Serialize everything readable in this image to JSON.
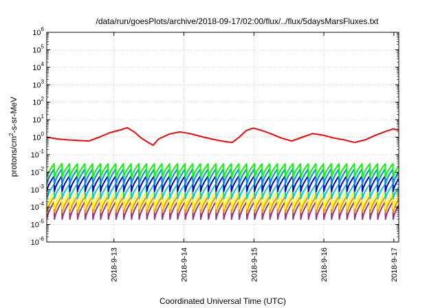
{
  "chart_data": {
    "type": "line",
    "title": "/data/run/goesPlots/archive/2018-09-17/02:00/flux/../flux/5daysMarsFluxes.txt",
    "xlabel": "Coordinated Universal Time (UTC)",
    "ylabel_base": "protons/cm",
    "ylabel_sup": "2",
    "ylabel_rest": "-s-sr-MeV",
    "y_scale": "log",
    "ylim": [
      1e-06,
      1000000.0
    ],
    "y_tick_exponents": [
      -6,
      -5,
      -4,
      -3,
      -2,
      -1,
      0,
      1,
      2,
      3,
      4,
      5,
      6
    ],
    "y_tick_base": "10",
    "x_range_days": [
      0,
      5.03
    ],
    "x_ticks": [
      {
        "label": "2018-9-13",
        "day": 0.96
      },
      {
        "label": "2018-9-14",
        "day": 1.96
      },
      {
        "label": "2018-9-15",
        "day": 2.96
      },
      {
        "label": "2018-9-16",
        "day": 3.96
      },
      {
        "label": "2018-9-17",
        "day": 4.96
      }
    ],
    "grid": true,
    "series": [
      {
        "color": "#ff0000",
        "kind": "smooth",
        "points": [
          [
            0.0,
            1.0
          ],
          [
            0.15,
            0.8
          ],
          [
            0.3,
            0.7
          ],
          [
            0.45,
            0.65
          ],
          [
            0.6,
            0.6
          ],
          [
            0.75,
            1.0
          ],
          [
            0.9,
            1.8
          ],
          [
            1.05,
            2.6
          ],
          [
            1.15,
            3.5
          ],
          [
            1.25,
            2.0
          ],
          [
            1.35,
            0.9
          ],
          [
            1.45,
            0.5
          ],
          [
            1.52,
            0.35
          ],
          [
            1.6,
            0.8
          ],
          [
            1.75,
            1.5
          ],
          [
            1.9,
            2.0
          ],
          [
            2.05,
            1.6
          ],
          [
            2.2,
            1.1
          ],
          [
            2.35,
            0.8
          ],
          [
            2.5,
            0.6
          ],
          [
            2.65,
            0.5
          ],
          [
            2.75,
            1.0
          ],
          [
            2.85,
            2.4
          ],
          [
            2.95,
            3.3
          ],
          [
            3.05,
            2.6
          ],
          [
            3.2,
            1.6
          ],
          [
            3.35,
            0.9
          ],
          [
            3.5,
            0.6
          ],
          [
            3.65,
            1.0
          ],
          [
            3.8,
            1.6
          ],
          [
            3.95,
            1.3
          ],
          [
            4.1,
            0.9
          ],
          [
            4.25,
            0.7
          ],
          [
            4.4,
            0.5
          ],
          [
            4.55,
            0.7
          ],
          [
            4.7,
            1.3
          ],
          [
            4.85,
            2.2
          ],
          [
            4.95,
            3.0
          ],
          [
            5.03,
            2.5
          ]
        ]
      },
      {
        "color": "#00ff00",
        "kind": "sawtooth",
        "period": 0.11,
        "low": 0.005,
        "high": 0.03
      },
      {
        "color": "#0088ff",
        "kind": "sawtooth",
        "period": 0.11,
        "low": 0.002,
        "high": 0.015
      },
      {
        "color": "#0000cc",
        "kind": "sawtooth",
        "period": 0.11,
        "low": 0.0008,
        "high": 0.006
      },
      {
        "color": "#00cccc",
        "kind": "sawtooth",
        "period": 0.11,
        "low": 0.0003,
        "high": 0.002
      },
      {
        "color": "#ffff00",
        "kind": "sawtooth",
        "period": 0.11,
        "low": 8e-05,
        "high": 0.0008
      },
      {
        "color": "#ff8800",
        "kind": "sawtooth",
        "period": 0.11,
        "low": 5e-05,
        "high": 0.0004
      },
      {
        "color": "#993377",
        "kind": "sawtooth",
        "period": 0.11,
        "low": 2e-05,
        "high": 0.0002
      }
    ]
  }
}
